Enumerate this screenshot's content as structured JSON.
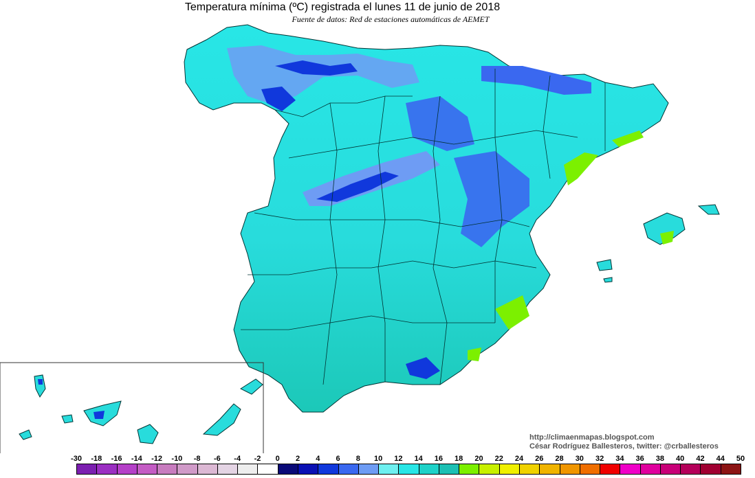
{
  "title": "Temperatura mínima (ºC) registrada el lunes 11 de junio de 2018",
  "subtitle": "Fuente de datos: Red de estaciones automáticas de AEMET",
  "credits": {
    "url": "http://climaenmapas.blogspot.com",
    "author": "César Rodríguez Ballesteros, twitter: @crballesteros"
  },
  "map": {
    "region": "Spain",
    "variable": "minimum temperature (ºC)"
  },
  "legend": {
    "labels": [
      "-30",
      "-18",
      "-16",
      "-14",
      "-12",
      "-10",
      "-8",
      "-6",
      "-4",
      "-2",
      "0",
      "2",
      "4",
      "6",
      "8",
      "10",
      "12",
      "14",
      "16",
      "18",
      "20",
      "22",
      "24",
      "26",
      "28",
      "30",
      "32",
      "34",
      "36",
      "38",
      "40",
      "42",
      "44",
      "50"
    ],
    "colors": [
      "#7c1fb0",
      "#9b2fc2",
      "#b540c8",
      "#c45cc4",
      "#c87cbf",
      "#d09ac8",
      "#dcb8d4",
      "#e4d4e4",
      "#eeeeee",
      "#ffffff",
      "#0a0a78",
      "#0a10b4",
      "#1038dc",
      "#3a68f0",
      "#6e9cf4",
      "#6ef0f0",
      "#28e6e6",
      "#1ed2c8",
      "#1cc0b4",
      "#7cf000",
      "#c8f000",
      "#f0f000",
      "#f0d200",
      "#f0b400",
      "#f09600",
      "#f06e00",
      "#f00000",
      "#f000c8",
      "#e0009e",
      "#c80078",
      "#b4005a",
      "#a00032",
      "#8c1414"
    ]
  }
}
